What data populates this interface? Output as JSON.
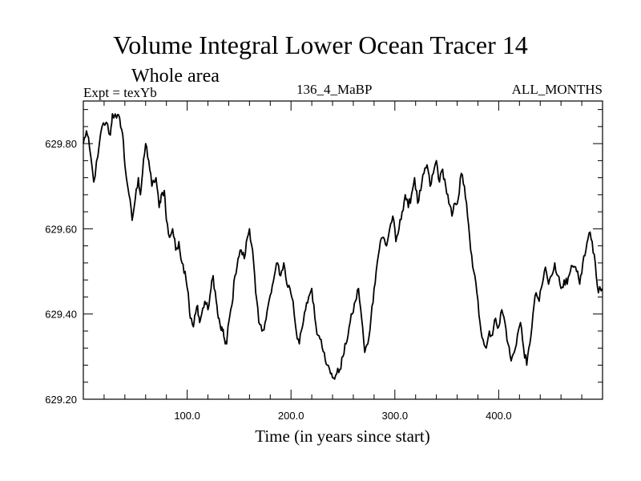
{
  "chart_data": {
    "type": "line",
    "title": "Volume Integral Lower Ocean Tracer 14",
    "subtitle": "Whole area",
    "experiment_label": "Expt = texYb",
    "center_label": "136_4_MaBP",
    "right_label": "ALL_MONTHS",
    "xlabel": "Time (in years since start)",
    "ylabel": "",
    "xlim": [
      0,
      500
    ],
    "ylim": [
      629.2,
      629.9
    ],
    "xticks": [
      100,
      200,
      300,
      400
    ],
    "xtick_labels": [
      "100.0",
      "200.0",
      "300.0",
      "400.0"
    ],
    "yticks": [
      629.2,
      629.4,
      629.6,
      629.8
    ],
    "ytick_labels": [
      "629.20",
      "629.40",
      "629.60",
      "629.80"
    ],
    "grid": false,
    "series": [
      {
        "color": "#000000",
        "x": [
          0,
          3,
          6,
          10,
          14,
          18,
          22,
          26,
          28,
          32,
          35,
          38,
          40,
          44,
          47,
          50,
          53,
          55,
          57,
          60,
          63,
          66,
          70,
          73,
          75,
          78,
          80,
          83,
          86,
          89,
          92,
          95,
          98,
          101,
          103,
          106,
          108,
          110,
          112,
          114,
          117,
          120,
          123,
          125,
          128,
          130,
          132,
          134,
          136,
          138,
          140,
          143,
          146,
          149,
          152,
          155,
          158,
          160,
          163,
          166,
          169,
          172,
          175,
          178,
          181,
          184,
          187,
          190,
          193,
          196,
          199,
          202,
          205,
          208,
          211,
          214,
          217,
          220,
          223,
          226,
          229,
          232,
          235,
          238,
          241,
          244,
          247,
          250,
          253,
          256,
          259,
          262,
          265,
          268,
          271,
          274,
          277,
          280,
          283,
          286,
          289,
          292,
          295,
          298,
          301,
          304,
          307,
          310,
          313,
          316,
          319,
          322,
          325,
          328,
          331,
          334,
          337,
          340,
          343,
          346,
          349,
          352,
          355,
          358,
          361,
          364,
          367,
          370,
          373,
          376,
          379,
          382,
          385,
          388,
          391,
          394,
          397,
          400,
          403,
          406,
          409,
          412,
          415,
          418,
          421,
          424,
          427,
          430,
          433,
          436,
          439,
          442,
          445,
          448,
          451,
          454,
          457,
          460,
          463,
          466,
          469,
          472,
          475,
          478,
          481,
          484,
          487,
          490,
          493,
          496,
          500
        ],
        "y": [
          629.8,
          629.83,
          629.79,
          629.71,
          629.77,
          629.84,
          629.85,
          629.82,
          629.87,
          629.86,
          629.86,
          629.82,
          629.75,
          629.68,
          629.62,
          629.67,
          629.72,
          629.68,
          629.73,
          629.8,
          629.76,
          629.7,
          629.72,
          629.65,
          629.68,
          629.69,
          629.62,
          629.58,
          629.6,
          629.55,
          629.57,
          629.52,
          629.5,
          629.45,
          629.39,
          629.37,
          629.4,
          629.42,
          629.38,
          629.4,
          629.43,
          629.41,
          629.46,
          629.49,
          629.43,
          629.39,
          629.37,
          629.36,
          629.34,
          629.33,
          629.38,
          629.42,
          629.49,
          629.53,
          629.55,
          629.53,
          629.58,
          629.6,
          629.55,
          629.45,
          629.38,
          629.36,
          629.38,
          629.42,
          629.45,
          629.49,
          629.52,
          629.49,
          629.52,
          629.47,
          629.46,
          629.43,
          629.36,
          629.33,
          629.37,
          629.41,
          629.44,
          629.46,
          629.39,
          629.35,
          629.34,
          629.31,
          629.28,
          629.26,
          629.25,
          629.26,
          629.27,
          629.3,
          629.33,
          629.37,
          629.4,
          629.43,
          629.46,
          629.39,
          629.31,
          629.33,
          629.39,
          629.46,
          629.52,
          629.57,
          629.58,
          629.56,
          629.6,
          629.63,
          629.57,
          629.6,
          629.64,
          629.68,
          629.65,
          629.68,
          629.72,
          629.66,
          629.69,
          629.73,
          629.75,
          629.7,
          629.73,
          629.76,
          629.71,
          629.74,
          629.7,
          629.66,
          629.63,
          629.66,
          629.67,
          629.73,
          629.7,
          629.63,
          629.55,
          629.5,
          629.45,
          629.38,
          629.34,
          629.32,
          629.36,
          629.35,
          629.39,
          629.37,
          629.41,
          629.38,
          629.33,
          629.29,
          629.31,
          629.35,
          629.38,
          629.32,
          629.28,
          629.33,
          629.4,
          629.45,
          629.43,
          629.47,
          629.51,
          629.47,
          629.49,
          629.52,
          629.49,
          629.46,
          629.48,
          629.47,
          629.5,
          629.51,
          629.5,
          629.47,
          629.52,
          629.55,
          629.59,
          629.57,
          629.52,
          629.45,
          629.46
        ]
      }
    ]
  }
}
